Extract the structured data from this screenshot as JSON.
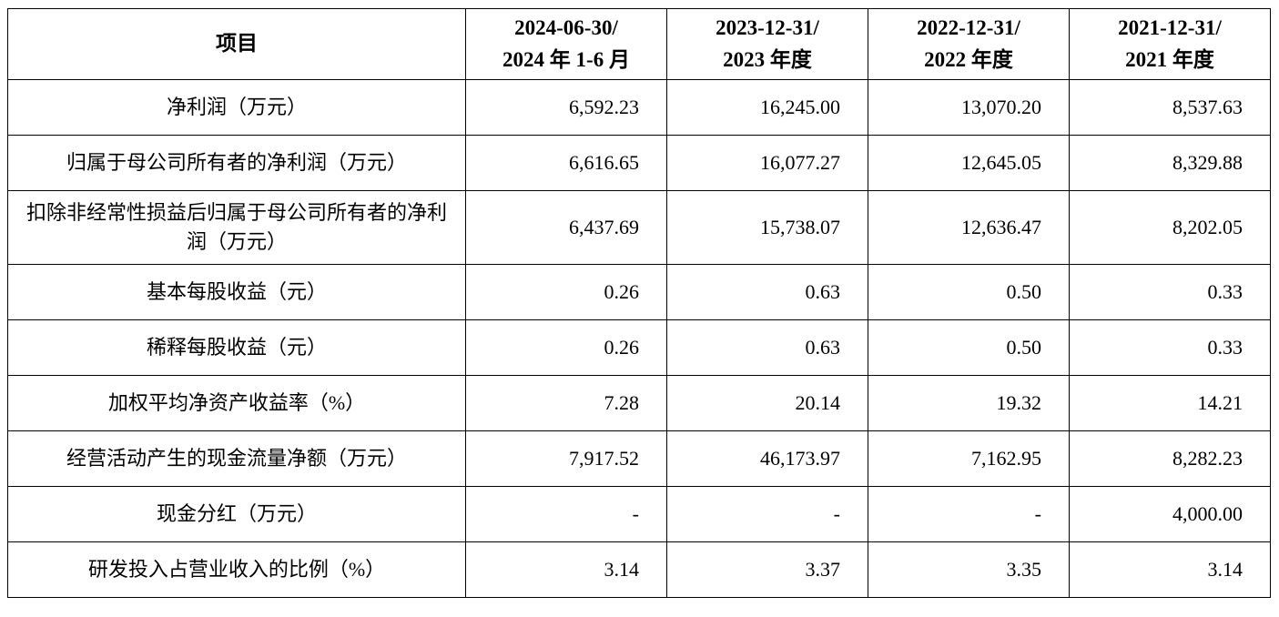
{
  "table": {
    "header": {
      "item_label": "项目",
      "periods": [
        {
          "line1": "2024-06-30/",
          "line2": "2024 年 1-6 月"
        },
        {
          "line1": "2023-12-31/",
          "line2": "2023 年度"
        },
        {
          "line1": "2022-12-31/",
          "line2": "2022 年度"
        },
        {
          "line1": "2021-12-31/",
          "line2": "2021 年度"
        }
      ]
    },
    "rows": [
      {
        "label": "净利润（万元）",
        "values": [
          "6,592.23",
          "16,245.00",
          "13,070.20",
          "8,537.63"
        ]
      },
      {
        "label": "归属于母公司所有者的净利润（万元）",
        "values": [
          "6,616.65",
          "16,077.27",
          "12,645.05",
          "8,329.88"
        ]
      },
      {
        "label": "扣除非经常性损益后归属于母公司所有者的净利润（万元）",
        "values": [
          "6,437.69",
          "15,738.07",
          "12,636.47",
          "8,202.05"
        ]
      },
      {
        "label": "基本每股收益（元）",
        "values": [
          "0.26",
          "0.63",
          "0.50",
          "0.33"
        ]
      },
      {
        "label": "稀释每股收益（元）",
        "values": [
          "0.26",
          "0.63",
          "0.50",
          "0.33"
        ]
      },
      {
        "label": "加权平均净资产收益率（%）",
        "values": [
          "7.28",
          "20.14",
          "19.32",
          "14.21"
        ]
      },
      {
        "label": "经营活动产生的现金流量净额（万元）",
        "values": [
          "7,917.52",
          "46,173.97",
          "7,162.95",
          "8,282.23"
        ]
      },
      {
        "label": "现金分红（万元）",
        "values": [
          "-",
          "-",
          "-",
          "4,000.00"
        ]
      },
      {
        "label": "研发投入占营业收入的比例（%）",
        "values": [
          "3.14",
          "3.37",
          "3.35",
          "3.14"
        ]
      }
    ]
  }
}
